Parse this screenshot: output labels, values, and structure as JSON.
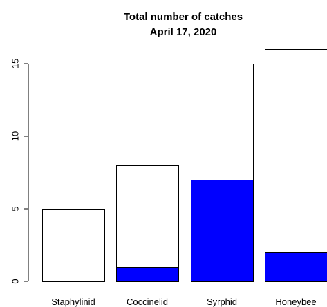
{
  "chart_data": {
    "type": "bar",
    "stacked": true,
    "title_lines": [
      "Total number of catches",
      "April 17, 2020"
    ],
    "categories": [
      "Staphylinid",
      "Coccinelid",
      "Syrphid",
      "Honeybee"
    ],
    "series": [
      {
        "values": [
          0,
          1,
          7,
          2
        ],
        "color": "#0000ff"
      },
      {
        "values": [
          5,
          7,
          8,
          14
        ],
        "color": "#ffffff"
      }
    ],
    "totals": [
      5,
      8,
      15,
      16
    ],
    "yticks": [
      0,
      5,
      10,
      15
    ],
    "ylim": [
      0,
      16
    ],
    "xlabel": "",
    "ylabel": "",
    "grid": false,
    "legend": "none"
  }
}
